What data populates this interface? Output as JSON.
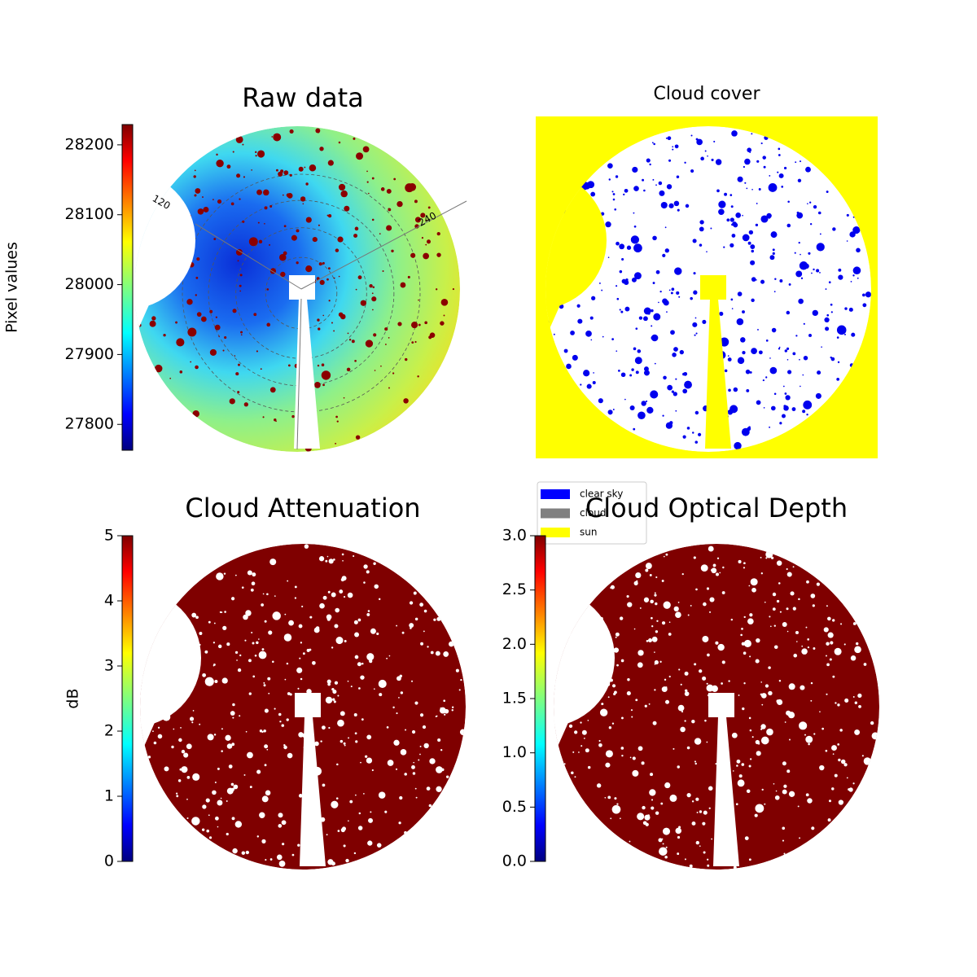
{
  "chart_data": [
    {
      "type": "image",
      "title": "Raw data",
      "colorbar_label": "Pixel values",
      "colormap": "jet",
      "ylim": [
        27763,
        28229
      ],
      "yticks": [
        27800,
        27900,
        28000,
        28100,
        28200
      ],
      "annotations": [
        "120",
        "240"
      ]
    },
    {
      "type": "image",
      "title": "Cloud cover",
      "legend": "lower left",
      "series": [
        {
          "name": "clear sky",
          "color": "#0000ff"
        },
        {
          "name": "cloud",
          "color": "#808080"
        },
        {
          "name": "sun",
          "color": "#ffff00"
        }
      ]
    },
    {
      "type": "image",
      "title": "Cloud Attenuation",
      "colorbar_label": "dB",
      "colormap": "jet",
      "ylim": [
        0,
        5
      ],
      "yticks": [
        0,
        1,
        2,
        3,
        4,
        5
      ]
    },
    {
      "type": "image",
      "title": "Cloud Optical Depth",
      "colormap": "jet",
      "ylim": [
        0,
        3
      ],
      "yticks": [
        {
          "value": 0,
          "label": "0.0"
        },
        {
          "value": 0.5,
          "label": "0.5"
        },
        {
          "value": 1,
          "label": "1.0"
        },
        {
          "value": 1.5,
          "label": "1.5"
        },
        {
          "value": 2,
          "label": "2.0"
        },
        {
          "value": 2.5,
          "label": "2.5"
        },
        {
          "value": 3,
          "label": "3.0"
        }
      ]
    }
  ]
}
